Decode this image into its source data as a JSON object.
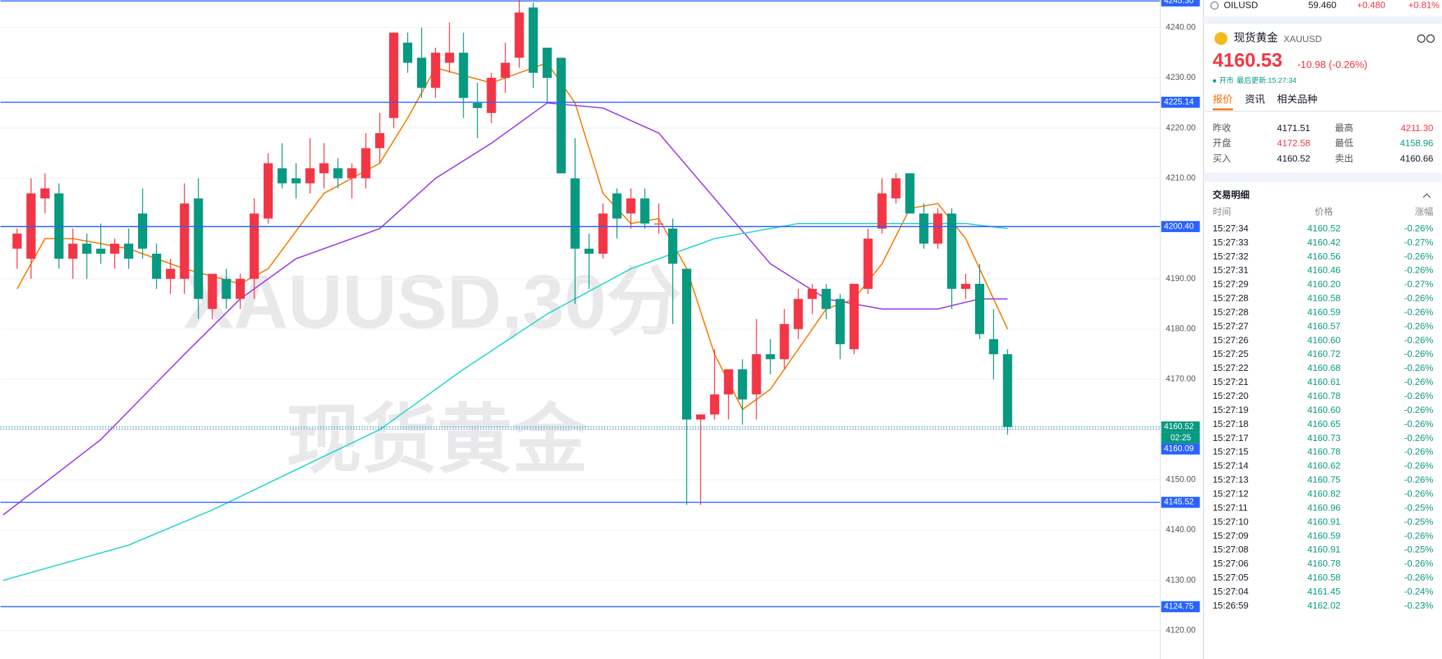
{
  "chart_data": {
    "type": "candlestick",
    "title": "XAUUSD,30分",
    "subtitle": "现货黄金",
    "up_color": "#f23645",
    "down_color": "#089981",
    "xlim": [
      -1.19,
      81.95
    ],
    "ylim": [
      4114.34,
      4245.49
    ],
    "yticks": [
      {
        "value": 4120,
        "label": "4120.00"
      },
      {
        "value": 4130,
        "label": "4130.00"
      },
      {
        "value": 4140,
        "label": "4140.00"
      },
      {
        "value": 4150,
        "label": "4150.00"
      },
      {
        "value": 4160,
        "label": "4160.00"
      },
      {
        "value": 4170,
        "label": "4170.00"
      },
      {
        "value": 4180,
        "label": "4180.00"
      },
      {
        "value": 4190,
        "label": "4190.00"
      },
      {
        "value": 4200,
        "label": "4200.00"
      },
      {
        "value": 4210,
        "label": "4210.00"
      },
      {
        "value": 4220,
        "label": "4220.00"
      },
      {
        "value": 4230,
        "label": "4230.00"
      },
      {
        "value": 4240,
        "label": "4240.00"
      }
    ],
    "grid": true,
    "open": [
      4196,
      4194,
      4206,
      4207,
      4194,
      4197,
      4196,
      4195,
      4197,
      4203,
      4195,
      4190,
      4190,
      4206,
      4184,
      4190,
      4186,
      4190,
      4202,
      4212,
      4210,
      4209,
      4211,
      4212,
      4210,
      4210,
      4216,
      4222,
      4237,
      4234,
      4228,
      4233,
      4235,
      4225,
      4223,
      4230,
      4234,
      4244,
      4236,
      4234,
      4210,
      4196,
      4195,
      4207,
      4203,
      4206,
      4201,
      4200,
      4192,
      4162,
      4163,
      4167,
      4172,
      4167,
      4175,
      4174,
      4180,
      4186,
      4188,
      4186,
      4176,
      4188,
      4200,
      4206,
      4211,
      4203,
      4197,
      4203,
      4188,
      4189,
      4178,
      4175
    ],
    "high": [
      4200,
      4210,
      4211,
      4209,
      4200,
      4199,
      4201,
      4198,
      4200,
      4208,
      4197,
      4194,
      4209,
      4210,
      4191,
      4192,
      4191,
      4206,
      4215,
      4217,
      4213,
      4218,
      4217,
      4214,
      4213,
      4219,
      4223,
      4238,
      4239,
      4240,
      4236,
      4241,
      4239,
      4229,
      4231,
      4237,
      4246,
      4245,
      4236,
      4234,
      4218,
      4199,
      4205,
      4208,
      4208,
      4208,
      4205,
      4202,
      4192,
      4163,
      4176,
      4171,
      4174,
      4182,
      4178,
      4184,
      4188,
      4189,
      4189,
      4187,
      4189,
      4200,
      4210,
      4211,
      4211,
      4205,
      4204,
      4204,
      4191,
      4193,
      4184,
      4176
    ],
    "low": [
      4192,
      4190,
      4203,
      4192,
      4190,
      4190,
      4193,
      4192,
      4192,
      4194,
      4188,
      4187,
      4187,
      4182,
      4182,
      4184,
      4184,
      4186,
      4201,
      4208,
      4206,
      4207,
      4208,
      4208,
      4206,
      4208,
      4213,
      4220,
      4231,
      4226,
      4226,
      4231,
      4222,
      4218,
      4221,
      4227,
      4232,
      4228,
      4225,
      4211,
      4185,
      4188,
      4194,
      4198,
      4200,
      4200,
      4199,
      4181,
      4145,
      4145,
      4162,
      4162,
      4161,
      4162,
      4171,
      4172,
      4178,
      4183,
      4182,
      4174,
      4175,
      4187,
      4199,
      4205,
      4203,
      4196,
      4196,
      4184,
      4186,
      4178,
      4170,
      4159
    ],
    "close": [
      4199,
      4207,
      4208,
      4194,
      4197,
      4195,
      4195,
      4197,
      4194,
      4196,
      4190,
      4192,
      4205,
      4186,
      4191,
      4186,
      4190,
      4203,
      4213,
      4209,
      4209,
      4212,
      4213,
      4210,
      4212,
      4216,
      4219,
      4239,
      4233,
      4228,
      4235,
      4235,
      4226,
      4224,
      4230,
      4233,
      4243,
      4231,
      4230,
      4211,
      4196,
      4195,
      4203,
      4202,
      4206,
      4201,
      4201,
      4193,
      4162,
      4163,
      4167,
      4172,
      4166,
      4175,
      4174,
      4181,
      4186,
      4188,
      4184,
      4177,
      4189,
      4198,
      4207,
      4210,
      4203,
      4197,
      4203,
      4188,
      4189,
      4179,
      4175,
      4160.53
    ],
    "lines": [
      {
        "color": "#f57c00",
        "x": [
          0,
          2,
          4,
          8,
          12,
          16,
          18,
          22,
          26,
          28,
          30,
          34,
          38,
          40,
          42,
          44,
          46,
          48,
          50,
          52,
          54,
          56,
          58,
          60,
          62,
          64,
          66,
          68,
          71
        ],
        "values": [
          4188,
          4198,
          4198,
          4196,
          4192,
          4189,
          4192,
          4207,
          4213,
          4222,
          4232,
          4229,
          4233,
          4225,
          4207,
          4201,
          4202,
          4192,
          4175,
          4164,
          4168,
          4176,
          4184,
          4186,
          4193,
          4204,
          4205,
          4198,
          4180
        ]
      },
      {
        "color": "#9c3ce0",
        "x": [
          -1,
          6,
          12,
          16,
          20,
          26,
          30,
          34,
          38,
          42,
          46,
          50,
          54,
          58,
          62,
          66,
          69,
          71
        ],
        "values": [
          4143,
          4158,
          4175,
          4186,
          4194,
          4200,
          4210,
          4217,
          4225,
          4224,
          4219,
          4206,
          4193,
          4186,
          4184,
          4184,
          4186,
          4186
        ]
      },
      {
        "color": "#26d4d0",
        "x": [
          -1,
          8,
          14,
          20,
          26,
          32,
          38,
          44,
          50,
          56,
          62,
          68,
          71
        ],
        "values": [
          4130,
          4137,
          4144,
          4152,
          4160,
          4172,
          4183,
          4192,
          4198,
          4201,
          4201,
          4201,
          4200
        ]
      }
    ],
    "hlines": [
      {
        "value": 4245.3,
        "label": "4245.30"
      },
      4225.14,
      {
        "value": 4200.4,
        "label": "4200.40"
      },
      4145.52,
      4124.75
    ],
    "last_price": 4160.52,
    "countdown": "02:25",
    "bid_line": 4160.09
  },
  "watchlist": {
    "symbol": "OILUSD",
    "price": "59.460",
    "change": "+0.480",
    "pct": "+0.81%"
  },
  "quote": {
    "name": "现货黄金",
    "symbol": "XAUUSD",
    "price": "4160.53",
    "change": "-10.98 (-0.26%)",
    "status": "开市",
    "updated": "最后更新:15:27:34",
    "tabs": [
      "报价",
      "资讯",
      "相关品种"
    ],
    "stats": [
      [
        "昨收",
        "4171.51",
        "最高",
        "4211.30"
      ],
      [
        "开盘",
        "4172.58",
        "最低",
        "4158.96"
      ],
      [
        "买入",
        "4160.52",
        "卖出",
        "4160.66"
      ]
    ]
  },
  "trades": {
    "title": "交易明细",
    "headers": [
      "时间",
      "价格",
      "涨幅"
    ],
    "rows": [
      [
        "15:27:34",
        "4160.52",
        "-0.26%"
      ],
      [
        "15:27:33",
        "4160.42",
        "-0.27%"
      ],
      [
        "15:27:32",
        "4160.56",
        "-0.26%"
      ],
      [
        "15:27:31",
        "4160.46",
        "-0.26%"
      ],
      [
        "15:27:29",
        "4160.20",
        "-0.27%"
      ],
      [
        "15:27:28",
        "4160.58",
        "-0.26%"
      ],
      [
        "15:27:28",
        "4160.59",
        "-0.26%"
      ],
      [
        "15:27:27",
        "4160.57",
        "-0.26%"
      ],
      [
        "15:27:26",
        "4160.60",
        "-0.26%"
      ],
      [
        "15:27:25",
        "4160.72",
        "-0.26%"
      ],
      [
        "15:27:22",
        "4160.68",
        "-0.26%"
      ],
      [
        "15:27:21",
        "4160.61",
        "-0.26%"
      ],
      [
        "15:27:20",
        "4160.78",
        "-0.26%"
      ],
      [
        "15:27:19",
        "4160.60",
        "-0.26%"
      ],
      [
        "15:27:18",
        "4160.65",
        "-0.26%"
      ],
      [
        "15:27:17",
        "4160.73",
        "-0.26%"
      ],
      [
        "15:27:15",
        "4160.78",
        "-0.26%"
      ],
      [
        "15:27:14",
        "4160.62",
        "-0.26%"
      ],
      [
        "15:27:13",
        "4160.75",
        "-0.26%"
      ],
      [
        "15:27:12",
        "4160.82",
        "-0.26%"
      ],
      [
        "15:27:11",
        "4160.96",
        "-0.25%"
      ],
      [
        "15:27:10",
        "4160.91",
        "-0.25%"
      ],
      [
        "15:27:09",
        "4160.59",
        "-0.26%"
      ],
      [
        "15:27:08",
        "4160.91",
        "-0.25%"
      ],
      [
        "15:27:06",
        "4160.78",
        "-0.26%"
      ],
      [
        "15:27:05",
        "4160.58",
        "-0.26%"
      ],
      [
        "15:27:04",
        "4161.45",
        "-0.24%"
      ],
      [
        "15:26:59",
        "4162.02",
        "-0.23%"
      ]
    ]
  }
}
